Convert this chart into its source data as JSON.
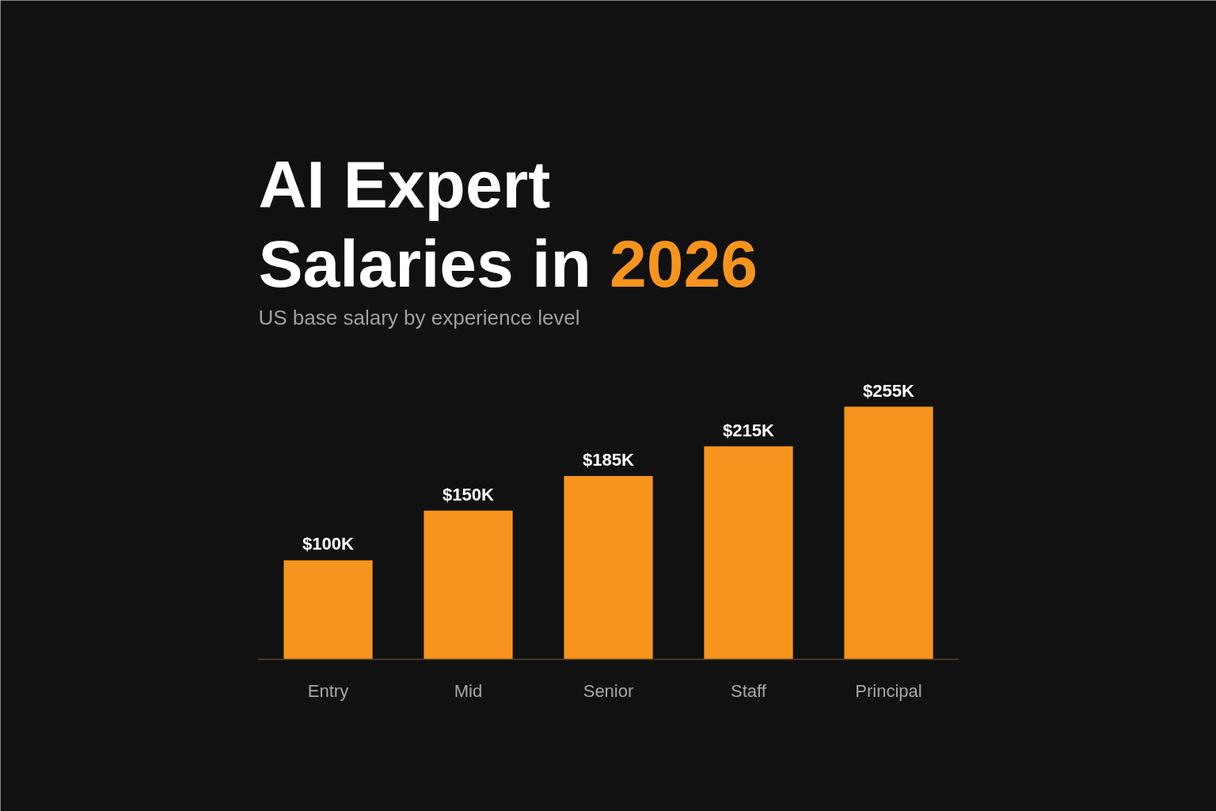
{
  "chart_data": {
    "type": "bar",
    "title": "AI Expert Salaries in 2026",
    "subtitle": "US base salary by experience level",
    "categories": [
      "Entry",
      "Mid",
      "Senior",
      "Staff",
      "Principal"
    ],
    "values": [
      100,
      150,
      185,
      215,
      255
    ],
    "value_labels": [
      "$100K",
      "$150K",
      "$185K",
      "$215K",
      "$255K"
    ],
    "color": "#f7941d",
    "grid": false
  }
}
